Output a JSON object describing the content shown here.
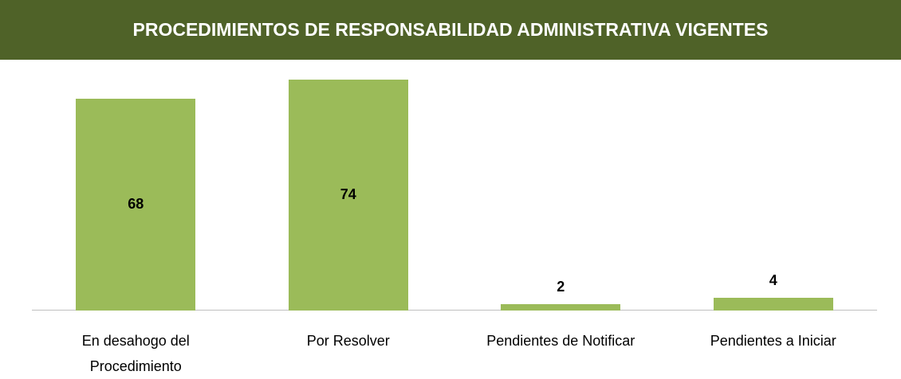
{
  "chart_data": {
    "type": "bar",
    "title": "PROCEDIMIENTOS DE RESPONSABILIDAD ADMINISTRATIVA VIGENTES",
    "categories": [
      "En desahogo del Procedimiento",
      "Por Resolver",
      "Pendientes de Notificar",
      "Pendientes a Iniciar"
    ],
    "values": [
      68,
      74,
      2,
      4
    ],
    "color": "#9bbb59"
  }
}
